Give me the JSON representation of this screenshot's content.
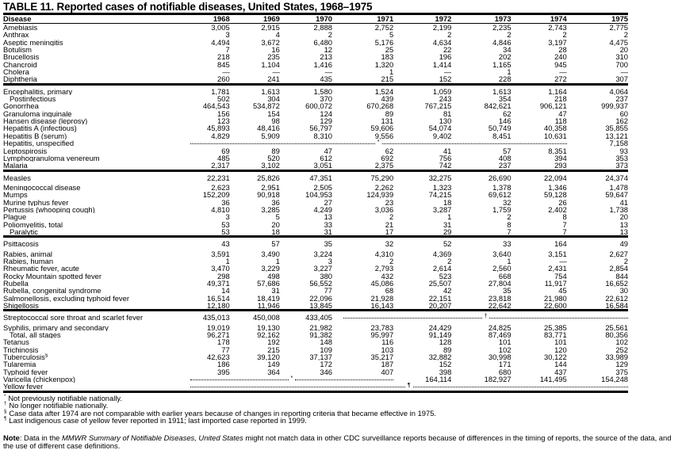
{
  "title": "TABLE 11. Reported cases of notifiable diseases, United States, 1968–1975",
  "header": {
    "disease": "Disease",
    "years": [
      "1968",
      "1969",
      "1970",
      "1971",
      "1972",
      "1973",
      "1974",
      "1975"
    ]
  },
  "groups": [
    [
      {
        "name": "Amebiasis",
        "values": [
          "3,005",
          "2,915",
          "2,888",
          "2,752",
          "2,199",
          "2,235",
          "2,743",
          "2,775"
        ]
      },
      {
        "name": "Anthrax",
        "values": [
          "3",
          "4",
          "2",
          "5",
          "2",
          "2",
          "2",
          "2"
        ]
      },
      {
        "name": "Aseptic meningitis",
        "values": [
          "4,494",
          "3,672",
          "6,480",
          "5,176",
          "4,634",
          "4,846",
          "3,197",
          "4,475"
        ]
      },
      {
        "name": "Botulism",
        "values": [
          "7",
          "16",
          "12",
          "25",
          "22",
          "34",
          "28",
          "20"
        ]
      },
      {
        "name": "Brucellosis",
        "values": [
          "218",
          "235",
          "213",
          "183",
          "196",
          "202",
          "240",
          "310"
        ]
      },
      {
        "name": "Chancroid",
        "values": [
          "845",
          "1,104",
          "1,416",
          "1,320",
          "1,414",
          "1,165",
          "945",
          "700"
        ]
      },
      {
        "name": "Cholera",
        "values": [
          "—",
          "—",
          "—",
          "1",
          "—",
          "1",
          "—",
          "—"
        ]
      },
      {
        "name": "Diphtheria",
        "values": [
          "260",
          "241",
          "435",
          "215",
          "152",
          "228",
          "272",
          "307"
        ]
      }
    ],
    [
      {
        "name": "Encephalitis, primary",
        "values": [
          "1,781",
          "1,613",
          "1,580",
          "1,524",
          "1,059",
          "1,613",
          "1,164",
          "4,064"
        ]
      },
      {
        "name": "Postinfectious",
        "indent": true,
        "values": [
          "502",
          "304",
          "370",
          "439",
          "243",
          "354",
          "218",
          "237"
        ]
      },
      {
        "name": "Gonorrhea",
        "values": [
          "464,543",
          "534,872",
          "600,072",
          "670,268",
          "767,215",
          "842,621",
          "906,121",
          "999,937"
        ]
      },
      {
        "name": "Granuloma inguinale",
        "values": [
          "156",
          "154",
          "124",
          "89",
          "81",
          "62",
          "47",
          "60"
        ]
      },
      {
        "name": "Hansen disease (leprosy)",
        "values": [
          "123",
          "98",
          "129",
          "131",
          "130",
          "146",
          "118",
          "162"
        ]
      },
      {
        "name": "Hepatitis A (infectious)",
        "values": [
          "45,893",
          "48,416",
          "56,797",
          "59,606",
          "54,074",
          "50,749",
          "40,358",
          "35,855"
        ]
      },
      {
        "name": "Hepatitis B (serum)",
        "values": [
          "4,829",
          "5,909",
          "8,310",
          "9,556",
          "9,402",
          "8,451",
          "10,631",
          "13,121"
        ]
      },
      {
        "name": "Hepatitis, unspecified",
        "dotted": {
          "from": 0,
          "to": 6,
          "mark": "*"
        },
        "values": [
          null,
          null,
          null,
          null,
          null,
          null,
          null,
          "7,158"
        ]
      },
      {
        "name": "Leptospirosis",
        "values": [
          "69",
          "89",
          "47",
          "62",
          "41",
          "57",
          "8,351",
          "93"
        ]
      },
      {
        "name": "Lymphogranuloma venereum",
        "values": [
          "485",
          "520",
          "612",
          "692",
          "756",
          "408",
          "394",
          "353"
        ]
      },
      {
        "name": "Malaria",
        "values": [
          "2,317",
          "3,102",
          "3,051",
          "2,375",
          "742",
          "237",
          "293",
          "373"
        ]
      }
    ],
    [
      {
        "name": "Measles",
        "values": [
          "22,231",
          "25,826",
          "47,351",
          "75,290",
          "32,275",
          "26,690",
          "22,094",
          "24,374"
        ]
      },
      {
        "name": "Meningococcal disease",
        "values": [
          "2,623",
          "2,951",
          "2,505",
          "2,262",
          "1,323",
          "1,378",
          "1,346",
          "1,478"
        ]
      },
      {
        "name": "Mumps",
        "values": [
          "152,209",
          "90,918",
          "104,953",
          "124,939",
          "74,215",
          "69,612",
          "59,128",
          "59,647"
        ]
      },
      {
        "name": "Murine typhus fever",
        "values": [
          "36",
          "36",
          "27",
          "23",
          "18",
          "32",
          "26",
          "41"
        ]
      },
      {
        "name": "Pertussis (whooping cough)",
        "values": [
          "4,810",
          "3,285",
          "4,249",
          "3,036",
          "3,287",
          "1,759",
          "2,402",
          "1,738"
        ]
      },
      {
        "name": "Plague",
        "values": [
          "3",
          "5",
          "13",
          "2",
          "1",
          "2",
          "8",
          "20"
        ]
      },
      {
        "name": "Poliomyelitis, total",
        "values": [
          "53",
          "20",
          "33",
          "21",
          "31",
          "8",
          "7",
          "13"
        ]
      },
      {
        "name": "Paralytic",
        "indent": true,
        "values": [
          "53",
          "18",
          "31",
          "17",
          "29",
          "7",
          "7",
          "13"
        ]
      }
    ],
    [
      {
        "name": "Psittacosis",
        "values": [
          "43",
          "57",
          "35",
          "32",
          "52",
          "33",
          "164",
          "49"
        ]
      },
      {
        "name": "Rabies, animal",
        "values": [
          "3,591",
          "3,490",
          "3,224",
          "4,310",
          "4,369",
          "3,640",
          "3,151",
          "2,627"
        ]
      },
      {
        "name": "Rabies, human",
        "values": [
          "1",
          "1",
          "3",
          "2",
          "2",
          "1",
          "—",
          "2"
        ]
      },
      {
        "name": "Rheumatic fever, acute",
        "values": [
          "3,470",
          "3,229",
          "3,227",
          "2,793",
          "2,614",
          "2,560",
          "2,431",
          "2,854"
        ]
      },
      {
        "name": "Rocky Mountain spotted fever",
        "values": [
          "298",
          "498",
          "380",
          "432",
          "523",
          "668",
          "754",
          "844"
        ]
      },
      {
        "name": "Rubella",
        "values": [
          "49,371",
          "57,686",
          "56,552",
          "45,086",
          "25,507",
          "27,804",
          "11,917",
          "16,652"
        ]
      },
      {
        "name": "Rubella, congenital syndrome",
        "values": [
          "14",
          "31",
          "77",
          "68",
          "42",
          "35",
          "45",
          "30"
        ]
      },
      {
        "name": "Salmonellosis, excluding typhoid fever",
        "values": [
          "16,514",
          "18,419",
          "22,096",
          "21,928",
          "22,151",
          "23,818",
          "21,980",
          "22,612"
        ]
      },
      {
        "name": "Shigellosis",
        "values": [
          "12,180",
          "11,946",
          "13,845",
          "16,143",
          "20,207",
          "22,642",
          "22,600",
          "16,584"
        ]
      }
    ],
    [
      {
        "name": "Streptococcal sore throat and scarlet fever",
        "dotted": {
          "from": 3,
          "to": 7,
          "mark": "†"
        },
        "values": [
          "435,013",
          "450,008",
          "433,405",
          null,
          null,
          null,
          null,
          null
        ]
      },
      {
        "name": "Syphilis, primary and secondary",
        "values": [
          "19,019",
          "19,130",
          "21,982",
          "23,783",
          "24,429",
          "24,825",
          "25,385",
          "25,561"
        ]
      },
      {
        "name": "Total, all stages",
        "indent": true,
        "values": [
          "96,271",
          "92,162",
          "91,382",
          "95,997",
          "91,149",
          "87,469",
          "83,771",
          "80,356"
        ]
      },
      {
        "name": "Tetanus",
        "values": [
          "178",
          "192",
          "148",
          "116",
          "128",
          "101",
          "101",
          "102"
        ]
      },
      {
        "name": "Trichinosis",
        "values": [
          "77",
          "215",
          "109",
          "103",
          "89",
          "102",
          "120",
          "252"
        ]
      },
      {
        "name": "Tuberculosis",
        "sup": "§",
        "values": [
          "42,623",
          "39,120",
          "37,137",
          "35,217",
          "32,882",
          "30,998",
          "30,122",
          "33,989"
        ]
      },
      {
        "name": "Tularemia",
        "values": [
          "186",
          "149",
          "172",
          "187",
          "152",
          "171",
          "144",
          "129"
        ]
      },
      {
        "name": "Typhoid fever",
        "values": [
          "395",
          "364",
          "346",
          "407",
          "398",
          "680",
          "437",
          "375"
        ]
      },
      {
        "name": "Varicella (chickenpox)",
        "dotted": {
          "from": 0,
          "to": 3,
          "mark": "*"
        },
        "values": [
          null,
          null,
          null,
          null,
          "164,114",
          "182,927",
          "141,495",
          "154,248"
        ]
      },
      {
        "name": "Yellow fever",
        "dotted": {
          "from": 0,
          "to": 7,
          "mark": "¶"
        },
        "values": [
          null,
          null,
          null,
          null,
          null,
          null,
          null,
          null
        ]
      }
    ]
  ],
  "footnotes": [
    {
      "mark": "*",
      "text": "Not previously notifiable nationally."
    },
    {
      "mark": "†",
      "text": "No longer notifiable nationally."
    },
    {
      "mark": "§",
      "text": "Case data after 1974 are not comparable with earlier years because of changes in reporting criteria that became effective in 1975."
    },
    {
      "mark": "¶",
      "text": "Last indigenous case of yellow fever reported in 1911; last imported case reported in 1999."
    }
  ],
  "note": {
    "label": "Note",
    "pre": ": Data in the ",
    "italic": "MMWR Summary of Notifiable Diseases, United States",
    "post": "  might not match data in other CDC surveillance reports because of differences in the timing of reports, the source of the data, and the use of different case definitions."
  }
}
